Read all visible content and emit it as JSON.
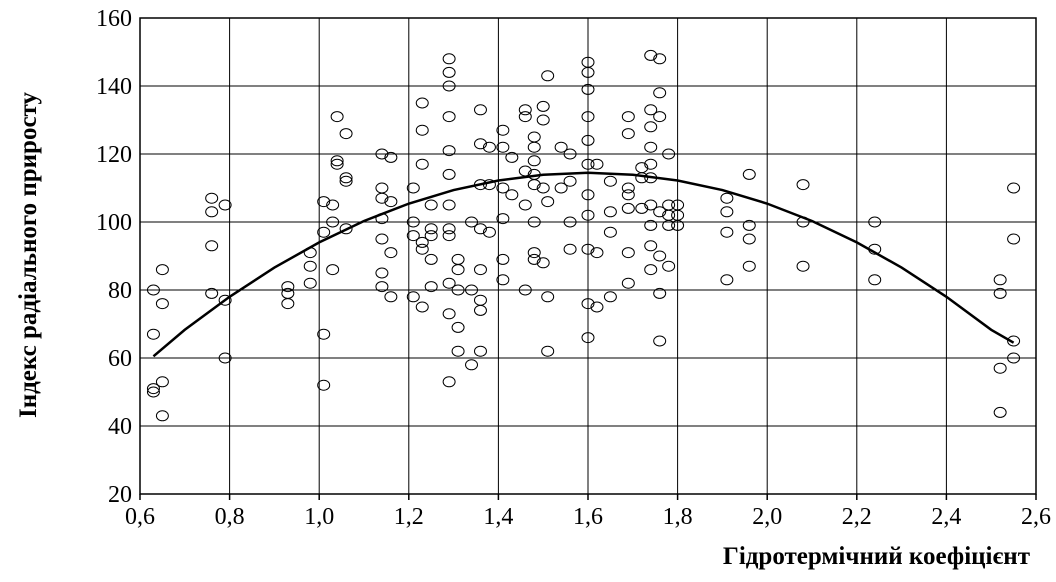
{
  "chart_data": {
    "type": "scatter",
    "x_label": "Гідротермічний коефіцієнт",
    "y_label": "Індекс радіального приросту",
    "xlim": [
      0.6,
      2.6
    ],
    "ylim": [
      20,
      160
    ],
    "xticks": [
      {
        "value": 0.6,
        "label": "0,6"
      },
      {
        "value": 0.8,
        "label": "0,8"
      },
      {
        "value": 1.0,
        "label": "1,0"
      },
      {
        "value": 1.2,
        "label": "1,2"
      },
      {
        "value": 1.4,
        "label": "1,4"
      },
      {
        "value": 1.6,
        "label": "1,6"
      },
      {
        "value": 1.8,
        "label": "1,8"
      },
      {
        "value": 2.0,
        "label": "2,0"
      },
      {
        "value": 2.2,
        "label": "2,2"
      },
      {
        "value": 2.4,
        "label": "2,4"
      },
      {
        "value": 2.6,
        "label": "2,6"
      }
    ],
    "yticks": [
      20,
      40,
      60,
      80,
      100,
      120,
      140,
      160
    ],
    "grid": true,
    "series": [
      {
        "type": "scatter",
        "color": "#000000",
        "x": [
          0.63,
          0.63,
          0.63,
          0.63,
          0.65,
          0.65,
          0.65,
          0.65,
          0.76,
          0.76,
          0.76,
          0.76,
          0.79,
          0.79,
          0.79,
          0.93,
          0.93,
          0.93,
          0.98,
          0.98,
          0.98,
          1.01,
          1.01,
          1.01,
          1.01,
          1.03,
          1.03,
          1.03,
          1.04,
          1.04,
          1.04,
          1.06,
          1.06,
          1.06,
          1.06,
          1.14,
          1.14,
          1.14,
          1.14,
          1.14,
          1.14,
          1.14,
          1.16,
          1.16,
          1.16,
          1.16,
          1.21,
          1.21,
          1.21,
          1.21,
          1.23,
          1.23,
          1.23,
          1.23,
          1.23,
          1.23,
          1.25,
          1.25,
          1.25,
          1.25,
          1.25,
          1.29,
          1.29,
          1.29,
          1.29,
          1.29,
          1.29,
          1.29,
          1.29,
          1.29,
          1.29,
          1.29,
          1.29,
          1.31,
          1.31,
          1.31,
          1.31,
          1.31,
          1.34,
          1.34,
          1.34,
          1.36,
          1.36,
          1.36,
          1.36,
          1.36,
          1.36,
          1.36,
          1.36,
          1.38,
          1.38,
          1.38,
          1.41,
          1.41,
          1.41,
          1.41,
          1.41,
          1.41,
          1.43,
          1.43,
          1.46,
          1.46,
          1.46,
          1.46,
          1.46,
          1.48,
          1.48,
          1.48,
          1.48,
          1.48,
          1.48,
          1.48,
          1.48,
          1.5,
          1.5,
          1.5,
          1.5,
          1.51,
          1.51,
          1.51,
          1.51,
          1.54,
          1.54,
          1.56,
          1.56,
          1.56,
          1.56,
          1.6,
          1.6,
          1.6,
          1.6,
          1.6,
          1.6,
          1.6,
          1.6,
          1.6,
          1.6,
          1.6,
          1.62,
          1.62,
          1.62,
          1.65,
          1.65,
          1.65,
          1.65,
          1.69,
          1.69,
          1.69,
          1.69,
          1.69,
          1.69,
          1.69,
          1.72,
          1.72,
          1.72,
          1.74,
          1.74,
          1.74,
          1.74,
          1.74,
          1.74,
          1.74,
          1.74,
          1.74,
          1.74,
          1.76,
          1.76,
          1.76,
          1.76,
          1.76,
          1.76,
          1.76,
          1.78,
          1.78,
          1.78,
          1.78,
          1.78,
          1.8,
          1.8,
          1.8,
          1.91,
          1.91,
          1.91,
          1.91,
          1.96,
          1.96,
          1.96,
          1.96,
          2.08,
          2.08,
          2.08,
          2.24,
          2.24,
          2.24,
          2.52,
          2.52,
          2.52,
          2.52,
          2.55,
          2.55,
          2.55,
          2.55
        ],
        "y": [
          80,
          67,
          51,
          50,
          86,
          76,
          53,
          43,
          107,
          103,
          93,
          79,
          105,
          77,
          60,
          81,
          79,
          76,
          91,
          87,
          82,
          106,
          97,
          67,
          52,
          105,
          100,
          86,
          131,
          118,
          117,
          126,
          113,
          112,
          98,
          120,
          110,
          107,
          101,
          95,
          85,
          81,
          119,
          106,
          91,
          78,
          110,
          100,
          96,
          78,
          135,
          127,
          117,
          94,
          92,
          75,
          105,
          98,
          96,
          89,
          81,
          148,
          144,
          140,
          131,
          121,
          114,
          105,
          98,
          96,
          82,
          73,
          53,
          89,
          86,
          80,
          69,
          62,
          100,
          80,
          58,
          133,
          123,
          111,
          98,
          86,
          77,
          74,
          62,
          122,
          111,
          97,
          127,
          122,
          110,
          101,
          89,
          83,
          119,
          108,
          133,
          131,
          115,
          105,
          80,
          125,
          122,
          118,
          114,
          111,
          100,
          91,
          89,
          134,
          130,
          110,
          88,
          143,
          106,
          78,
          62,
          122,
          110,
          120,
          112,
          100,
          92,
          147,
          144,
          139,
          131,
          124,
          117,
          108,
          102,
          92,
          76,
          66,
          117,
          91,
          75,
          112,
          103,
          97,
          78,
          131,
          126,
          110,
          108,
          104,
          91,
          82,
          116,
          113,
          104,
          149,
          133,
          128,
          122,
          117,
          113,
          105,
          99,
          93,
          86,
          148,
          138,
          131,
          103,
          90,
          79,
          65,
          120,
          105,
          102,
          99,
          87,
          105,
          102,
          99,
          107,
          103,
          97,
          83,
          114,
          99,
          95,
          87,
          111,
          100,
          87,
          100,
          92,
          83,
          83,
          79,
          57,
          44,
          110,
          95,
          65,
          60
        ]
      },
      {
        "type": "line",
        "color": "#000000",
        "x": [
          0.63,
          0.7,
          0.8,
          0.9,
          1.0,
          1.1,
          1.2,
          1.3,
          1.4,
          1.5,
          1.6,
          1.7,
          1.8,
          1.9,
          2.0,
          2.1,
          2.2,
          2.3,
          2.4,
          2.5,
          2.55
        ],
        "y": [
          60.5,
          68.3,
          78.0,
          86.6,
          94.0,
          100.3,
          105.4,
          109.4,
          112.2,
          113.9,
          114.5,
          113.9,
          112.2,
          109.4,
          105.4,
          100.3,
          94.0,
          86.6,
          78.0,
          68.3,
          64.5
        ]
      }
    ]
  }
}
